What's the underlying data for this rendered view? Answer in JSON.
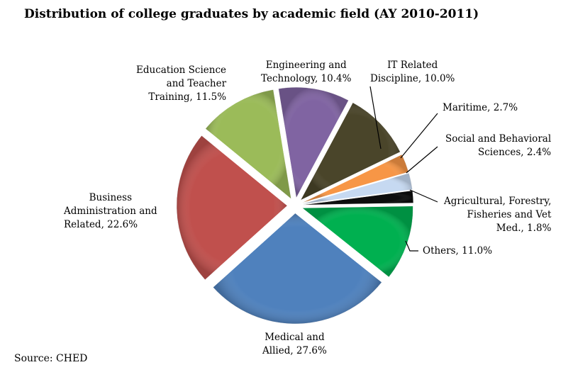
{
  "chart_data": {
    "type": "pie",
    "title": "Distribution of college graduates by academic field (AY 2010-2011)",
    "source": "Source: CHED",
    "slices": [
      {
        "label": "Others",
        "value": 11.0,
        "text1": "Others, 11.0%",
        "text2": "",
        "color": "#00b050"
      },
      {
        "label": "Medical and Allied",
        "value": 27.6,
        "text1": "Medical and",
        "text2": "Allied, 27.6%",
        "color": "#4f81bd"
      },
      {
        "label": "Business Administration and Related",
        "value": 22.6,
        "text1": "Business",
        "text2": "Administration and",
        "text3": "Related, 22.6%",
        "color": "#c0504d"
      },
      {
        "label": "Education Science and Teacher Training",
        "value": 11.5,
        "text1": "Education Science",
        "text2": "and Teacher",
        "text3": "Training, 11.5%",
        "color": "#9bbb59"
      },
      {
        "label": "Engineering and Technology",
        "value": 10.4,
        "text1": "Engineering and",
        "text2": "Technology, 10.4%",
        "color": "#8064a2"
      },
      {
        "label": "IT Related Discipline",
        "value": 10.0,
        "text1": "IT Related",
        "text2": "Discipline, 10.0%",
        "color": "#4a452a"
      },
      {
        "label": "Maritime",
        "value": 2.7,
        "text1": "Maritime, 2.7%",
        "color": "#f79646"
      },
      {
        "label": "Social and Behavioral Sciences",
        "value": 2.4,
        "text1": "Social and Behavioral",
        "text2": "Sciences, 2.4%",
        "color": "#c6d9f1"
      },
      {
        "label": "Agricultural, Forestry, Fisheries and Vet Med.",
        "value": 1.8,
        "text1": "Agricultural, Forestry,",
        "text2": "Fisheries and Vet",
        "text3": "Med., 1.8%",
        "color": "#0d0d0d"
      }
    ]
  }
}
